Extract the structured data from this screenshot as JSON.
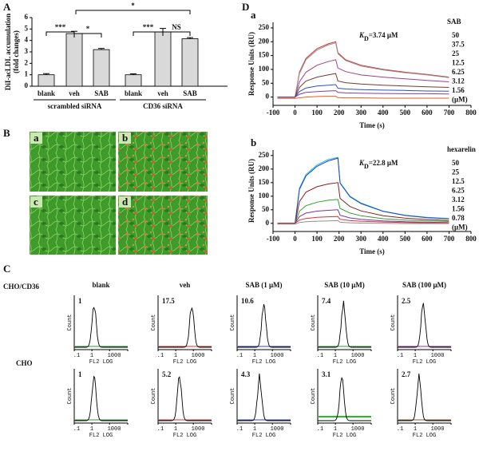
{
  "chart_data": [
    {
      "type": "bar",
      "label": "A",
      "y_label": [
        "DiI-acLDL accumulation",
        "(fold changes)"
      ],
      "categories": [
        "blank",
        "veh",
        "SAB",
        "blank",
        "veh",
        "SAB"
      ],
      "groups": [
        "scrambled siRNA",
        "CD36 siRNA"
      ],
      "values": [
        1.0,
        4.6,
        3.2,
        1.0,
        4.75,
        4.15
      ],
      "errors": [
        0.1,
        0.2,
        0.1,
        0.08,
        0.3,
        0.1
      ],
      "color": "#d9d9d9",
      "significance": [
        "***",
        "*",
        "*",
        "***",
        "NS"
      ],
      "ylim": [
        0,
        6
      ],
      "yticks": [
        0,
        1,
        2,
        3,
        4,
        5,
        6
      ]
    },
    {
      "type": "line",
      "label": "a",
      "legend_title": "SAB",
      "legend_unit": "(μM)",
      "kd": {
        "symbol": "K",
        "sub": "D",
        "text": "=3.74 μM"
      },
      "x_label": "Time (s)",
      "y_label": "Response Units (RU)",
      "xlim": [
        -100,
        800
      ],
      "xticks": [
        -100,
        0,
        100,
        200,
        300,
        400,
        500,
        600,
        700,
        800
      ],
      "ylim": [
        -30,
        270
      ],
      "yticks": [
        0,
        50,
        100,
        150,
        200,
        250
      ],
      "x": [
        -80,
        -10,
        0,
        20,
        50,
        100,
        150,
        185,
        195,
        230,
        300,
        400,
        500,
        600,
        700
      ],
      "series": [
        {
          "name": "50",
          "color": "#e03030",
          "values": [
            0,
            0,
            0,
            90,
            140,
            175,
            192,
            200,
            160,
            135,
            115,
            100,
            90,
            82,
            72
          ]
        },
        {
          "name": "37.5",
          "color": "#909090",
          "values": [
            0,
            0,
            0,
            85,
            135,
            170,
            188,
            196,
            157,
            132,
            112,
            98,
            88,
            80,
            70
          ]
        },
        {
          "name": "25",
          "color": "#a04080",
          "values": [
            0,
            0,
            0,
            55,
            90,
            115,
            128,
            135,
            105,
            92,
            80,
            72,
            66,
            60,
            55
          ]
        },
        {
          "name": "12.5",
          "color": "#7a3a2a",
          "values": [
            0,
            0,
            0,
            35,
            58,
            72,
            80,
            85,
            58,
            52,
            47,
            43,
            40,
            37,
            35
          ]
        },
        {
          "name": "6.25",
          "color": "#2a50d0",
          "values": [
            0,
            0,
            0,
            20,
            33,
            40,
            43,
            45,
            32,
            29,
            27,
            25,
            24,
            22,
            21
          ]
        },
        {
          "name": "3.12",
          "color": "#8040a0",
          "values": [
            0,
            0,
            0,
            10,
            17,
            20,
            22,
            23,
            17,
            15,
            14,
            13,
            12,
            12,
            11
          ]
        },
        {
          "name": "1.56",
          "color": "#e06020",
          "values": [
            -5,
            -5,
            -5,
            -3,
            0,
            2,
            3,
            3,
            -2,
            -3,
            -3,
            -4,
            -4,
            -4,
            -4
          ]
        }
      ]
    },
    {
      "type": "line",
      "label": "b",
      "legend_title": "hexarelin",
      "legend_unit": "(μM)",
      "kd": {
        "symbol": "K",
        "sub": "D",
        "text": "=22.8 μM"
      },
      "x_label": "Time (s)",
      "y_label": "Response Units (RU)",
      "xlim": [
        -100,
        800
      ],
      "xticks": [
        -100,
        0,
        100,
        200,
        300,
        400,
        500,
        600,
        700,
        800
      ],
      "ylim": [
        -30,
        270
      ],
      "yticks": [
        0,
        50,
        100,
        150,
        200,
        250
      ],
      "x": [
        -80,
        -10,
        0,
        20,
        50,
        100,
        150,
        195,
        205,
        250,
        300,
        400,
        500,
        600,
        700
      ],
      "series": [
        {
          "name": "50",
          "color": "#20c0d0",
          "values": [
            0,
            0,
            0,
            130,
            180,
            215,
            235,
            243,
            150,
            100,
            75,
            45,
            30,
            22,
            18
          ]
        },
        {
          "name": "25",
          "color": "#2040c0",
          "values": [
            0,
            0,
            0,
            125,
            175,
            210,
            230,
            240,
            148,
            98,
            73,
            44,
            29,
            21,
            17
          ]
        },
        {
          "name": "12.5",
          "color": "#8a2020",
          "values": [
            0,
            0,
            0,
            80,
            115,
            135,
            145,
            150,
            92,
            62,
            46,
            28,
            19,
            14,
            11
          ]
        },
        {
          "name": "6.25",
          "color": "#30a030",
          "values": [
            0,
            0,
            0,
            45,
            65,
            78,
            85,
            88,
            55,
            38,
            28,
            17,
            12,
            9,
            7
          ]
        },
        {
          "name": "3.12",
          "color": "#8030a0",
          "values": [
            0,
            0,
            0,
            25,
            38,
            45,
            48,
            50,
            30,
            20,
            15,
            9,
            6,
            4,
            3
          ]
        },
        {
          "name": "1.56",
          "color": "#e03030",
          "values": [
            0,
            0,
            0,
            12,
            18,
            22,
            24,
            25,
            15,
            10,
            8,
            5,
            3,
            2,
            2
          ]
        },
        {
          "name": "0.78",
          "color": "#909090",
          "values": [
            -3,
            -3,
            -3,
            3,
            6,
            8,
            9,
            10,
            4,
            2,
            1,
            0,
            -1,
            -1,
            -1
          ]
        }
      ]
    }
  ],
  "panel_labels": {
    "B": "B",
    "C": "C",
    "D": "D"
  },
  "panel_b": {
    "labels": [
      "a",
      "b",
      "c",
      "d"
    ]
  },
  "panel_c": {
    "columns": [
      "blank",
      "veh",
      "SAB (1 μM)",
      "SAB (10 μM)",
      "SAB (100 μM)"
    ],
    "rows": [
      {
        "label": "CHO/CD36",
        "values": [
          "1",
          "17.5",
          "10.6",
          "7.4",
          "2.5"
        ]
      },
      {
        "label": "CHO",
        "values": [
          "1",
          "5.2",
          "4.3",
          "3.1",
          "2.7"
        ]
      }
    ],
    "y_label": "Count",
    "x_label": "FL2 LOG",
    "x_ticks": [
      ".1",
      "1",
      "1000"
    ]
  }
}
